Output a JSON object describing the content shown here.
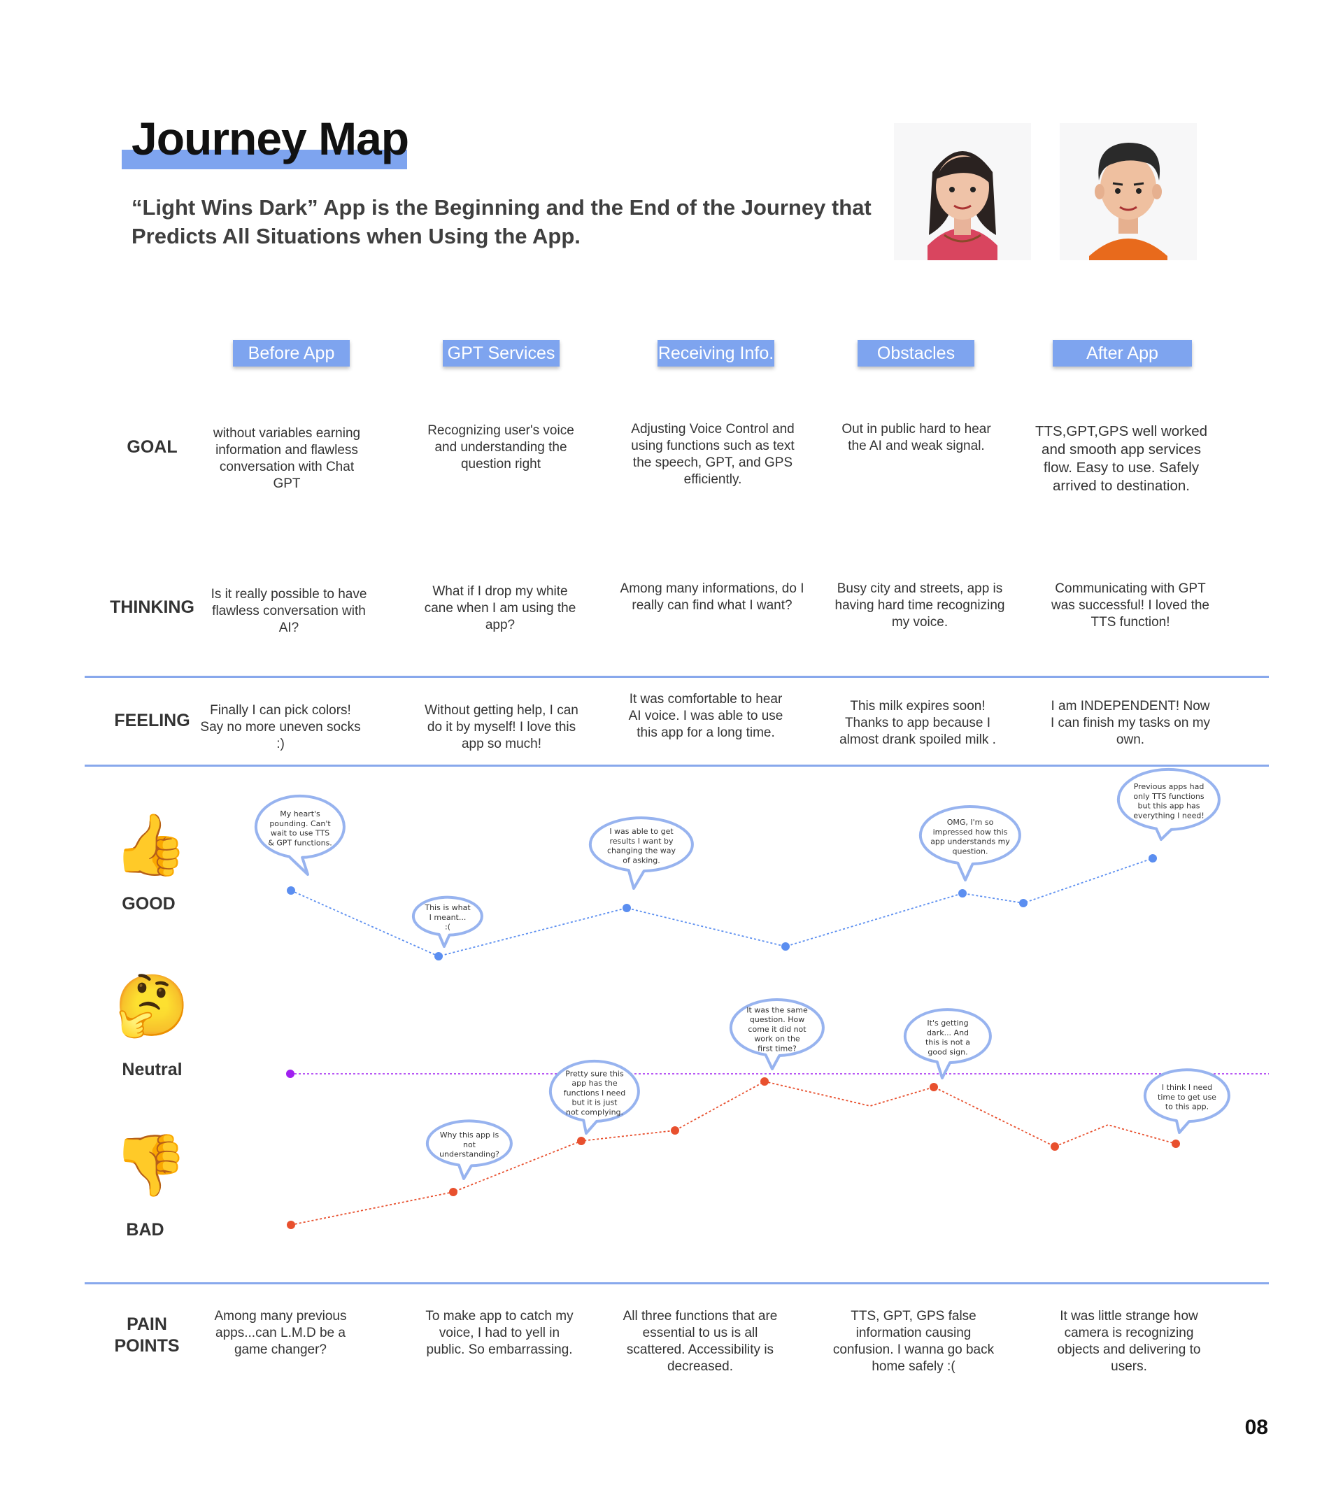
{
  "header": {
    "title": "Journey Map",
    "subtitle_line1": "“Light Wins Dark” App is the Beginning and the End of the Journey that",
    "subtitle_line2": "Predicts All Situations when Using the App."
  },
  "avatars": [
    {
      "name": "woman-avatar"
    },
    {
      "name": "man-avatar"
    }
  ],
  "stages": [
    "Before App",
    "GPT Services",
    "Receiving Info.",
    "Obstacles",
    "After App"
  ],
  "rows": {
    "goal": {
      "label": "GOAL",
      "cells": [
        "without variables earning information and flawless conversation with Chat GPT",
        "Recognizing user's voice and understanding the question right",
        "Adjusting Voice Control and using functions such as text the speech, GPT, and GPS efficiently.",
        "Out in public hard to hear the AI and weak signal.",
        "TTS,GPT,GPS well worked and smooth app services flow. Easy to use. Safely arrived to destination."
      ]
    },
    "thinking": {
      "label": "THINKING",
      "cells": [
        "Is it really possible to have flawless conversation with AI?",
        "What if I drop my white cane when I am using the app?",
        "Among many informations, do I really can find what I want?",
        "Busy city and streets, app is having hard time recognizing my voice.",
        "Communicating with GPT was successful! I loved the TTS function!"
      ]
    },
    "feeling": {
      "label": "FEELING",
      "cells": [
        "Finally I can pick colors! Say no more uneven socks :)",
        "Without getting help, I can do it by myself! I love this app so much!",
        "It was comfortable to hear AI voice. I was able to use this app for a long time.",
        "This milk expires soon! Thanks to app because I almost drank spoiled milk .",
        "I am INDEPENDENT! Now I can finish my tasks on my own."
      ]
    },
    "pain_points": {
      "label_line1": "PAIN",
      "label_line2": "POINTS",
      "cells": [
        "Among many previous apps...can L.M.D be a game changer?",
        "To make app to catch my voice, I had to yell in public. So embarrassing.",
        "All three functions that are essential to us is all scattered. Accessibility is decreased.",
        "TTS, GPT, GPS false information causing confusion. I wanna go back home safely :(",
        "It was little strange how camera is recognizing objects and delivering to users."
      ]
    }
  },
  "emotion_labels": {
    "good": "GOOD",
    "neutral": "Neutral",
    "bad": "BAD"
  },
  "emotion_icons": {
    "good": "thumbs-up-icon",
    "neutral": "thinking-face-icon",
    "bad": "thumbs-down-icon"
  },
  "colors": {
    "accent": "#7ea4ef",
    "good_line": "#5b8ef0",
    "bad_line": "#e8502e",
    "neutral_line": "#a020f0",
    "bubble_stroke": "#97b3ef"
  },
  "good_bubbles": [
    "My heart's pounding. Can't wait to use TTS & GPT functions.",
    "This is what I meant... :(",
    "I was able to get results I want by changing the way of asking.",
    "OMG, I'm so impressed how this app understands my question.",
    "Previous apps had only TTS functions but this app has everything I need!"
  ],
  "bad_bubbles": [
    "Why this app is not understanding?",
    "Pretty sure this app has the functions I need but it is just not complying.",
    "It was the same question. How come it did not work on the first time?",
    "It's getting dark... And this is not a good sign.",
    "I think I need time to get use to this app."
  ],
  "page_number": "08"
}
